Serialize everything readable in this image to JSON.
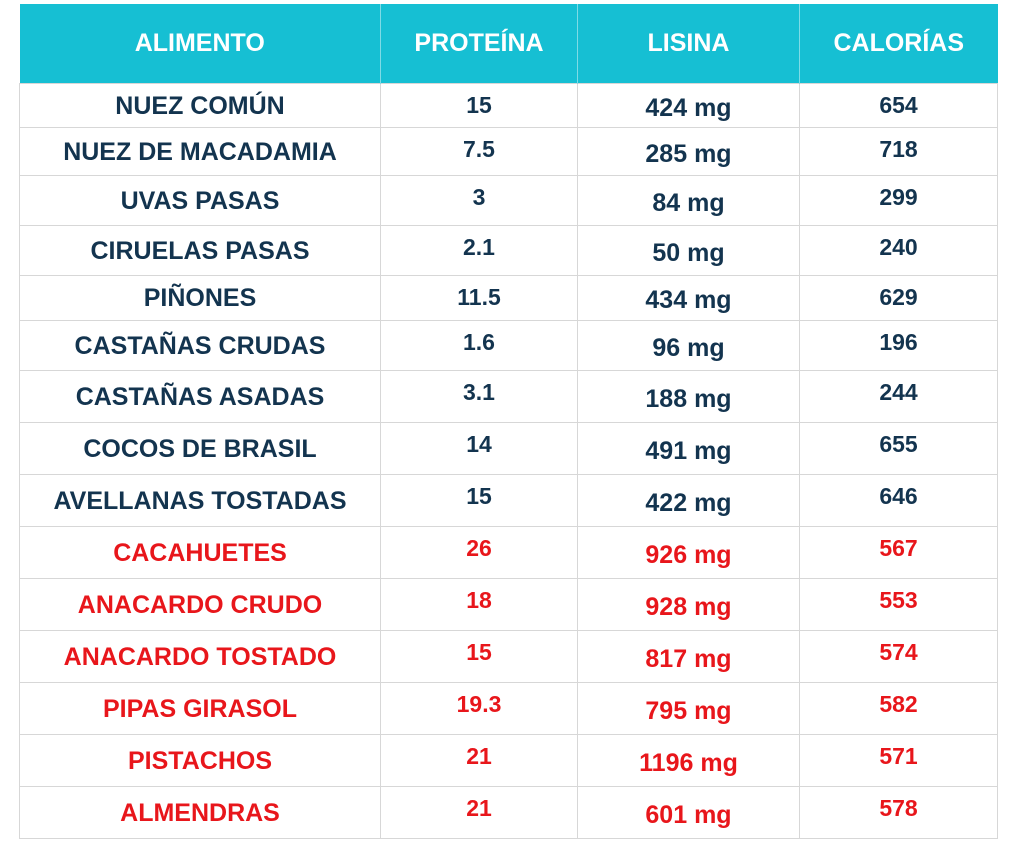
{
  "table": {
    "headers": [
      "ALIMENTO",
      "PROTEÍNA",
      "LISINA",
      "CALORÍAS"
    ],
    "rows": [
      {
        "food": "NUEZ COMÚN",
        "protein": "15",
        "lysine": "424 mg",
        "calories": "654",
        "highlight": false,
        "height": 44
      },
      {
        "food": "NUEZ DE MACADAMIA",
        "protein": "7.5",
        "lysine": "285 mg",
        "calories": "718",
        "highlight": false,
        "height": 48
      },
      {
        "food": "UVAS PASAS",
        "protein": "3",
        "lysine": "84 mg",
        "calories": "299",
        "highlight": false,
        "height": 50
      },
      {
        "food": "CIRUELAS PASAS",
        "protein": "2.1",
        "lysine": "50 mg",
        "calories": "240",
        "highlight": false,
        "height": 50
      },
      {
        "food": "PIÑONES",
        "protein": "11.5",
        "lysine": "434 mg",
        "calories": "629",
        "highlight": false,
        "height": 45
      },
      {
        "food": "CASTAÑAS CRUDAS",
        "protein": "1.6",
        "lysine": "96 mg",
        "calories": "196",
        "highlight": false,
        "height": 50
      },
      {
        "food": "CASTAÑAS ASADAS",
        "protein": "3.1",
        "lysine": "188 mg",
        "calories": "244",
        "highlight": false,
        "height": 52
      },
      {
        "food": "COCOS DE BRASIL",
        "protein": "14",
        "lysine": "491 mg",
        "calories": "655",
        "highlight": false,
        "height": 52
      },
      {
        "food": "AVELLANAS TOSTADAS",
        "protein": "15",
        "lysine": "422 mg",
        "calories": "646",
        "highlight": false,
        "height": 52
      },
      {
        "food": "CACAHUETES",
        "protein": "26",
        "lysine": "926 mg",
        "calories": "567",
        "highlight": true,
        "height": 52
      },
      {
        "food": "ANACARDO CRUDO",
        "protein": "18",
        "lysine": "928 mg",
        "calories": "553",
        "highlight": true,
        "height": 52
      },
      {
        "food": "ANACARDO TOSTADO",
        "protein": "15",
        "lysine": "817 mg",
        "calories": "574",
        "highlight": true,
        "height": 52
      },
      {
        "food": "PIPAS GIRASOL",
        "protein": "19.3",
        "lysine": "795 mg",
        "calories": "582",
        "highlight": true,
        "height": 52
      },
      {
        "food": "PISTACHOS",
        "protein": "21",
        "lysine": "1196 mg",
        "calories": "571",
        "highlight": true,
        "height": 52
      },
      {
        "food": "ALMENDRAS",
        "protein": "21",
        "lysine": "601 mg",
        "calories": "578",
        "highlight": true,
        "height": 52
      }
    ]
  },
  "colors": {
    "header_background": "#16bfd3",
    "header_text": "#ffffff",
    "row_text": "#13344f",
    "highlight_text": "#e8161b",
    "grid_line": "#d7d7d7"
  }
}
